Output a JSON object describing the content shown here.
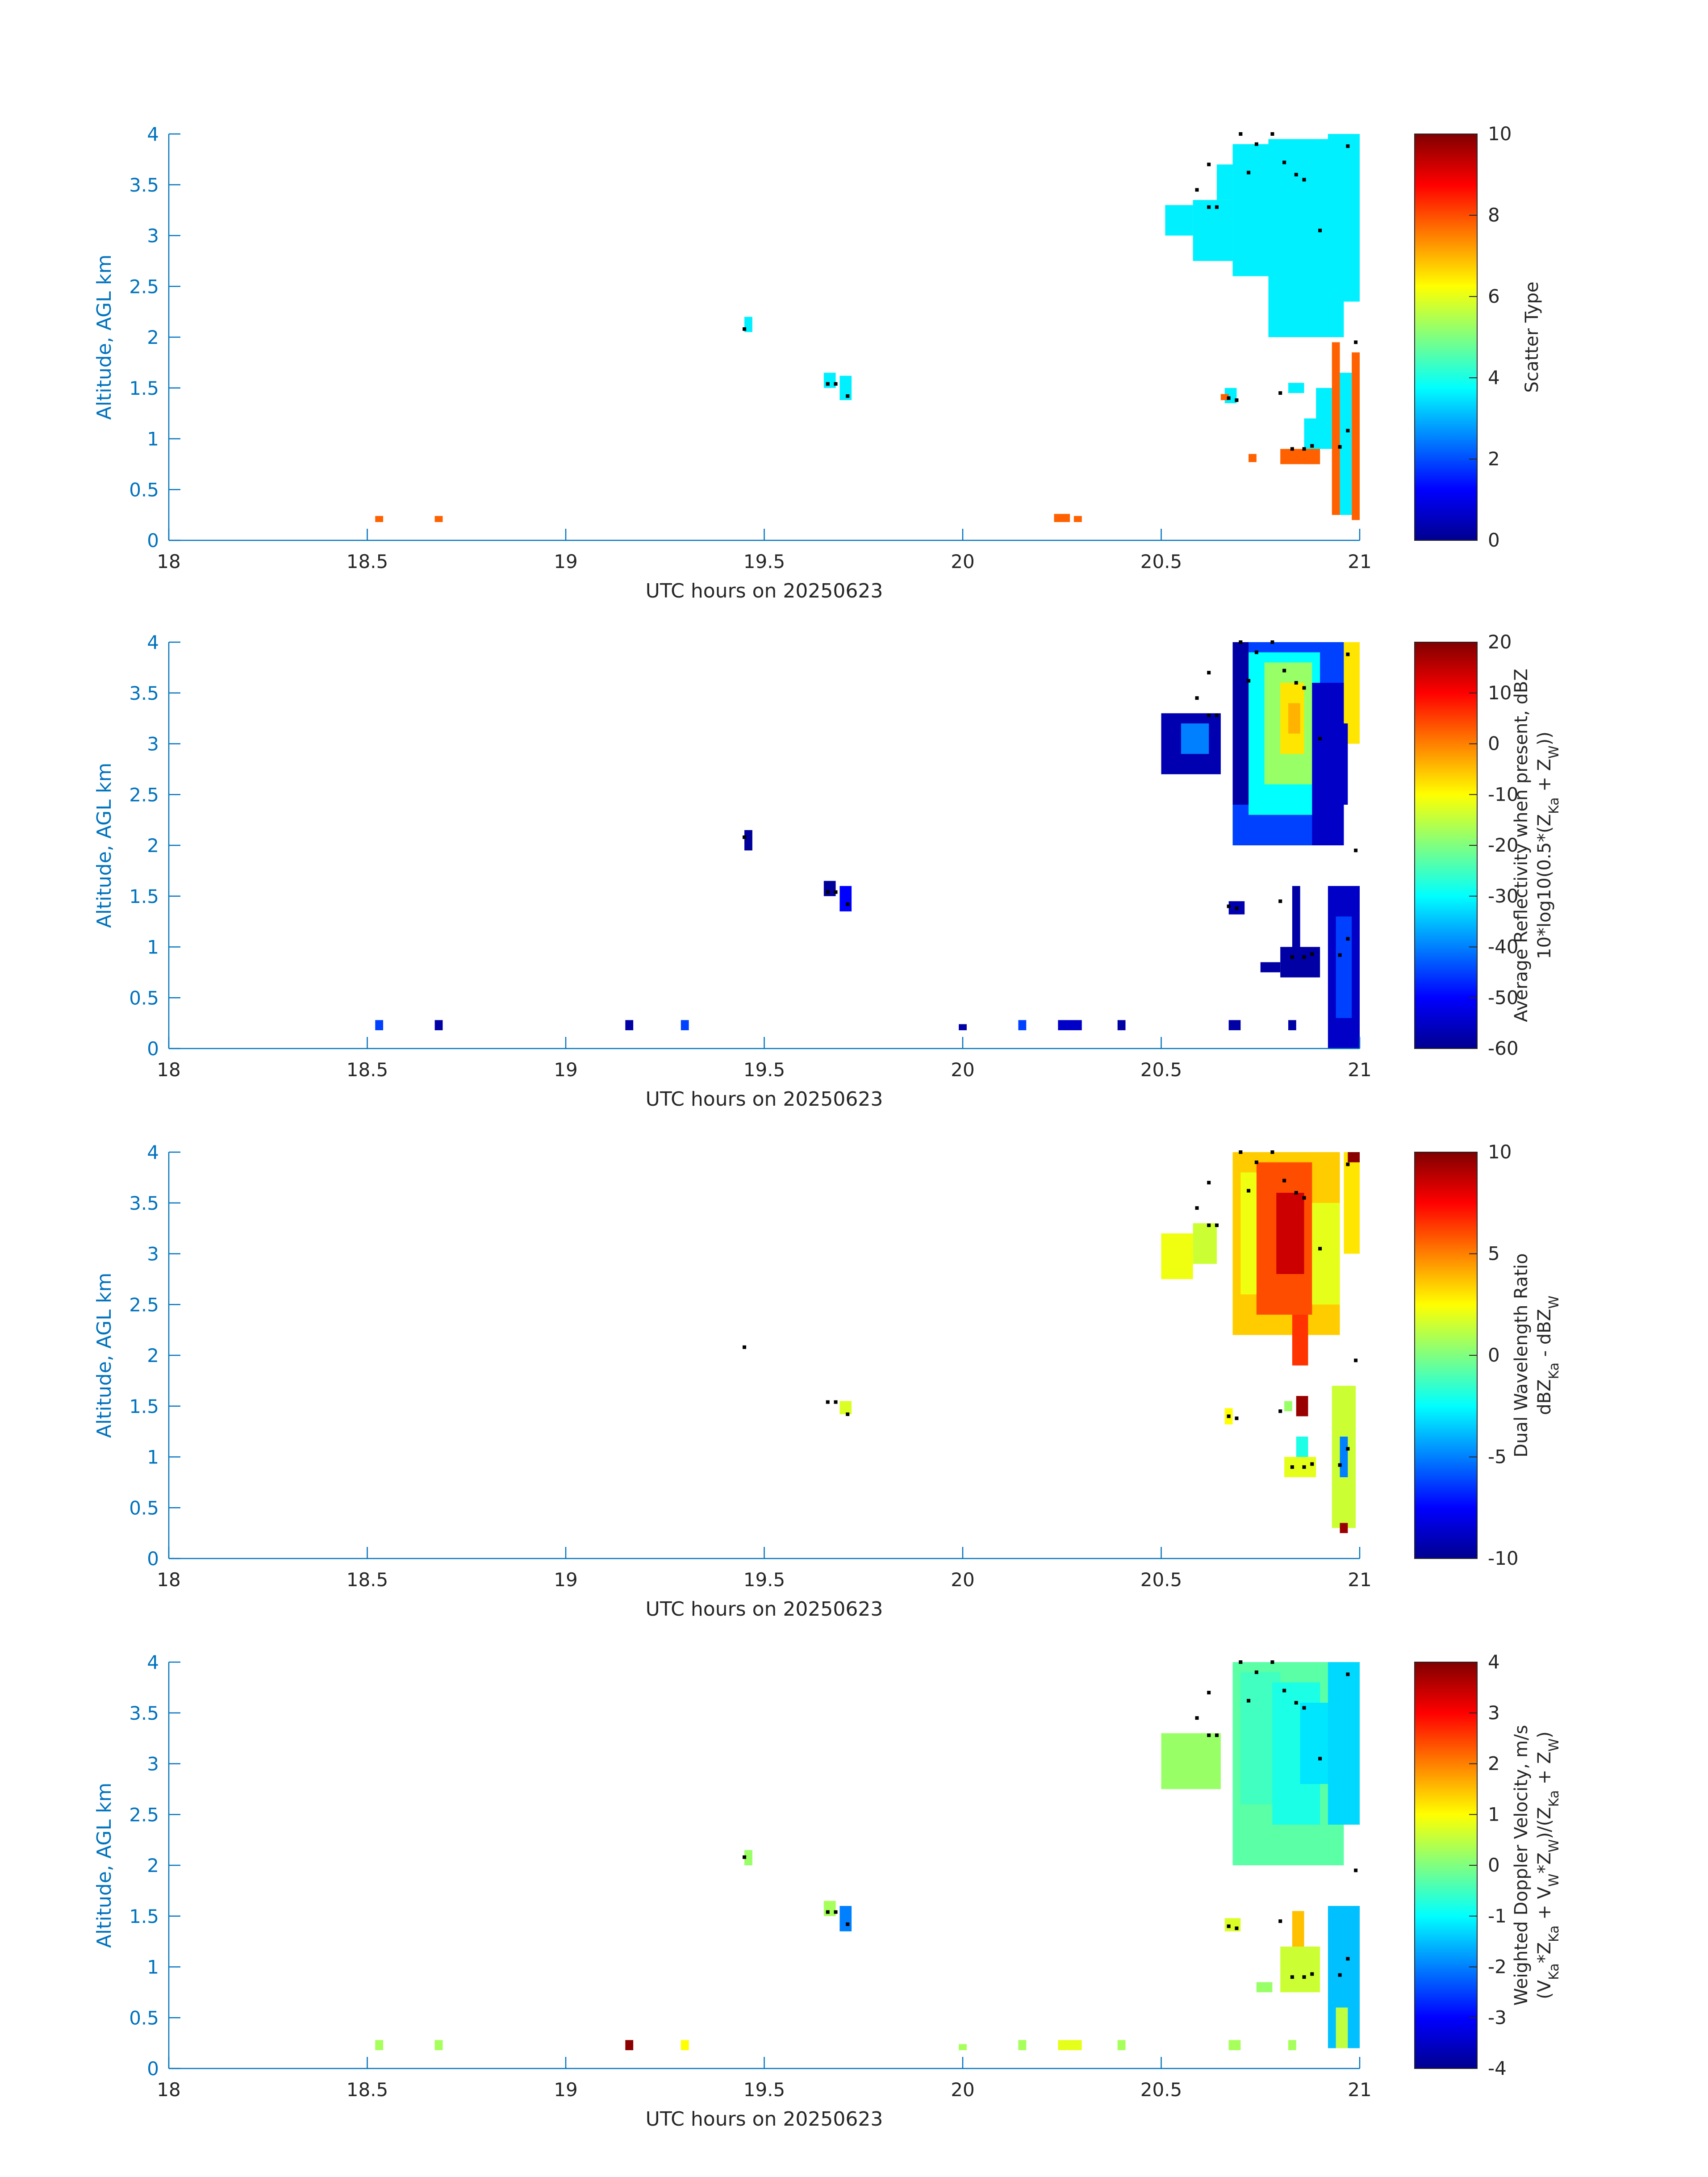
{
  "colors": {
    "axis_blue": "#0072BD",
    "axis_dark": "#262626",
    "dot": "#000000",
    "jet": [
      "#00008F",
      "#0000FF",
      "#0080FF",
      "#00FFFF",
      "#80FF80",
      "#FFFF00",
      "#FF8000",
      "#FF0000",
      "#800000"
    ]
  },
  "chart_data": [
    {
      "type": "heatmap",
      "panel": 1,
      "xlabel": "UTC hours on 20250623",
      "ylabel": "Altitude, AGL km",
      "xticks": [
        "18",
        "18.5",
        "19",
        "19.5",
        "20",
        "20.5",
        "21"
      ],
      "yticks": [
        "0",
        "0.5",
        "1",
        "1.5",
        "2",
        "2.5",
        "3",
        "3.5",
        "4"
      ],
      "xlim": [
        18,
        21
      ],
      "ylim": [
        0,
        4
      ],
      "colorbar": {
        "label_lines": [
          "Scatter Type"
        ],
        "range": [
          0,
          10
        ],
        "ticks": [
          "0",
          "2",
          "4",
          "6",
          "8",
          "10"
        ]
      },
      "cells": [
        {
          "x0": 20.77,
          "x1": 20.96,
          "y0": 2.0,
          "y1": 3.95,
          "v": 3.6
        },
        {
          "x0": 20.68,
          "x1": 20.78,
          "y0": 2.6,
          "y1": 3.9,
          "v": 3.6
        },
        {
          "x0": 20.58,
          "x1": 20.68,
          "y0": 2.75,
          "y1": 3.35,
          "v": 3.6
        },
        {
          "x0": 20.51,
          "x1": 20.58,
          "y0": 3.0,
          "y1": 3.3,
          "v": 3.6
        },
        {
          "x0": 20.64,
          "x1": 20.68,
          "y0": 3.35,
          "y1": 3.7,
          "v": 3.6
        },
        {
          "x0": 20.92,
          "x1": 21.0,
          "y0": 2.35,
          "y1": 4.0,
          "v": 3.6
        },
        {
          "x0": 20.89,
          "x1": 20.93,
          "y0": 0.9,
          "y1": 1.5,
          "v": 3.6
        },
        {
          "x0": 20.95,
          "x1": 20.98,
          "y0": 0.25,
          "y1": 1.65,
          "v": 3.6
        },
        {
          "x0": 20.82,
          "x1": 20.86,
          "y0": 1.45,
          "y1": 1.55,
          "v": 3.6
        },
        {
          "x0": 20.86,
          "x1": 20.9,
          "y0": 0.75,
          "y1": 1.2,
          "v": 3.6
        },
        {
          "x0": 20.66,
          "x1": 20.69,
          "y0": 1.35,
          "y1": 1.5,
          "v": 3.6
        },
        {
          "x0": 19.45,
          "x1": 19.47,
          "y0": 2.05,
          "y1": 2.2,
          "v": 3.6
        },
        {
          "x0": 19.65,
          "x1": 19.68,
          "y0": 1.5,
          "y1": 1.65,
          "v": 3.6
        },
        {
          "x0": 19.69,
          "x1": 19.72,
          "y0": 1.38,
          "y1": 1.62,
          "v": 3.6
        },
        {
          "x0": 20.93,
          "x1": 20.95,
          "y0": 0.25,
          "y1": 1.95,
          "v": 7.8
        },
        {
          "x0": 20.98,
          "x1": 21.0,
          "y0": 0.2,
          "y1": 1.85,
          "v": 7.8
        },
        {
          "x0": 20.8,
          "x1": 20.9,
          "y0": 0.75,
          "y1": 0.9,
          "v": 7.8
        },
        {
          "x0": 20.65,
          "x1": 20.67,
          "y0": 1.38,
          "y1": 1.44,
          "v": 7.8
        },
        {
          "x0": 20.72,
          "x1": 20.74,
          "y0": 0.77,
          "y1": 0.85,
          "v": 7.8
        },
        {
          "x0": 18.52,
          "x1": 18.54,
          "y0": 0.18,
          "y1": 0.24,
          "v": 7.8
        },
        {
          "x0": 18.67,
          "x1": 18.69,
          "y0": 0.18,
          "y1": 0.24,
          "v": 7.8
        },
        {
          "x0": 20.23,
          "x1": 20.27,
          "y0": 0.18,
          "y1": 0.26,
          "v": 7.8
        },
        {
          "x0": 20.28,
          "x1": 20.3,
          "y0": 0.18,
          "y1": 0.24,
          "v": 7.8
        }
      ]
    },
    {
      "type": "heatmap",
      "panel": 2,
      "xlabel": "UTC hours on 20250623",
      "ylabel": "Altitude, AGL km",
      "xticks": [
        "18",
        "18.5",
        "19",
        "19.5",
        "20",
        "20.5",
        "21"
      ],
      "yticks": [
        "0",
        "0.5",
        "1",
        "1.5",
        "2",
        "2.5",
        "3",
        "3.5",
        "4"
      ],
      "xlim": [
        18,
        21
      ],
      "ylim": [
        0,
        4
      ],
      "colorbar": {
        "label_lines": [
          "Average Reflectivity when present, dBZ",
          "10*log10(0.5*(Z",
          "Ka",
          " + Z",
          "W",
          "))"
        ],
        "range": [
          -60,
          20
        ],
        "ticks": [
          "-60",
          "-50",
          "-40",
          "-30",
          "-20",
          "-10",
          "0",
          "10",
          "20"
        ]
      },
      "cells": [
        {
          "x0": 20.68,
          "x1": 20.96,
          "y0": 2.0,
          "y1": 4.0,
          "v": -45
        },
        {
          "x0": 20.72,
          "x1": 20.9,
          "y0": 2.3,
          "y1": 3.9,
          "v": -30
        },
        {
          "x0": 20.76,
          "x1": 20.88,
          "y0": 2.6,
          "y1": 3.8,
          "v": -18
        },
        {
          "x0": 20.8,
          "x1": 20.86,
          "y0": 2.9,
          "y1": 3.6,
          "v": -8
        },
        {
          "x0": 20.82,
          "x1": 20.85,
          "y0": 3.1,
          "y1": 3.4,
          "v": -4
        },
        {
          "x0": 20.68,
          "x1": 20.72,
          "y0": 2.4,
          "y1": 4.0,
          "v": -58
        },
        {
          "x0": 20.88,
          "x1": 20.96,
          "y0": 2.0,
          "y1": 3.6,
          "v": -55
        },
        {
          "x0": 20.5,
          "x1": 20.65,
          "y0": 2.7,
          "y1": 3.3,
          "v": -57
        },
        {
          "x0": 20.55,
          "x1": 20.62,
          "y0": 2.9,
          "y1": 3.2,
          "v": -40
        },
        {
          "x0": 20.96,
          "x1": 21.0,
          "y0": 3.0,
          "y1": 4.0,
          "v": -8
        },
        {
          "x0": 20.95,
          "x1": 20.97,
          "y0": 2.4,
          "y1": 3.2,
          "v": -55
        },
        {
          "x0": 20.92,
          "x1": 21.0,
          "y0": 0.0,
          "y1": 1.6,
          "v": -55
        },
        {
          "x0": 20.94,
          "x1": 20.98,
          "y0": 0.3,
          "y1": 1.3,
          "v": -45
        },
        {
          "x0": 20.8,
          "x1": 20.9,
          "y0": 0.7,
          "y1": 1.0,
          "v": -58
        },
        {
          "x0": 20.83,
          "x1": 20.85,
          "y0": 1.0,
          "y1": 1.6,
          "v": -58
        },
        {
          "x0": 20.67,
          "x1": 20.71,
          "y0": 1.32,
          "y1": 1.45,
          "v": -57
        },
        {
          "x0": 20.75,
          "x1": 20.8,
          "y0": 0.75,
          "y1": 0.85,
          "v": -58
        },
        {
          "x0": 19.45,
          "x1": 19.47,
          "y0": 1.95,
          "y1": 2.15,
          "v": -59
        },
        {
          "x0": 19.65,
          "x1": 19.68,
          "y0": 1.5,
          "y1": 1.65,
          "v": -59
        },
        {
          "x0": 19.69,
          "x1": 19.72,
          "y0": 1.35,
          "y1": 1.6,
          "v": -50
        },
        {
          "x0": 18.52,
          "x1": 18.54,
          "y0": 0.18,
          "y1": 0.28,
          "v": -45
        },
        {
          "x0": 18.67,
          "x1": 18.69,
          "y0": 0.18,
          "y1": 0.28,
          "v": -58
        },
        {
          "x0": 19.15,
          "x1": 19.17,
          "y0": 0.18,
          "y1": 0.28,
          "v": -58
        },
        {
          "x0": 19.29,
          "x1": 19.31,
          "y0": 0.18,
          "y1": 0.28,
          "v": -45
        },
        {
          "x0": 19.99,
          "x1": 20.01,
          "y0": 0.18,
          "y1": 0.24,
          "v": -58
        },
        {
          "x0": 20.14,
          "x1": 20.16,
          "y0": 0.18,
          "y1": 0.28,
          "v": -45
        },
        {
          "x0": 20.24,
          "x1": 20.3,
          "y0": 0.18,
          "y1": 0.28,
          "v": -55
        },
        {
          "x0": 20.39,
          "x1": 20.41,
          "y0": 0.18,
          "y1": 0.28,
          "v": -58
        },
        {
          "x0": 20.67,
          "x1": 20.7,
          "y0": 0.18,
          "y1": 0.28,
          "v": -58
        },
        {
          "x0": 20.82,
          "x1": 20.84,
          "y0": 0.18,
          "y1": 0.28,
          "v": -58
        }
      ]
    },
    {
      "type": "heatmap",
      "panel": 3,
      "xlabel": "UTC hours on 20250623",
      "ylabel": "Altitude, AGL km",
      "xticks": [
        "18",
        "18.5",
        "19",
        "19.5",
        "20",
        "20.5",
        "21"
      ],
      "yticks": [
        "0",
        "0.5",
        "1",
        "1.5",
        "2",
        "2.5",
        "3",
        "3.5",
        "4"
      ],
      "xlim": [
        18,
        21
      ],
      "ylim": [
        0,
        4
      ],
      "colorbar": {
        "label_lines": [
          "Dual Wavelength Ratio",
          "dBZ",
          "Ka",
          " - dBZ",
          "W"
        ],
        "range": [
          -10,
          10
        ],
        "ticks": [
          "-10",
          "-5",
          "0",
          "5",
          "10"
        ]
      },
      "cells": [
        {
          "x0": 20.68,
          "x1": 20.95,
          "y0": 2.2,
          "y1": 4.0,
          "v": 3.5
        },
        {
          "x0": 20.74,
          "x1": 20.88,
          "y0": 2.4,
          "y1": 3.9,
          "v": 6
        },
        {
          "x0": 20.79,
          "x1": 20.86,
          "y0": 2.8,
          "y1": 3.6,
          "v": 8.5
        },
        {
          "x0": 20.7,
          "x1": 20.74,
          "y0": 2.6,
          "y1": 3.8,
          "v": 2.2
        },
        {
          "x0": 20.88,
          "x1": 20.95,
          "y0": 2.5,
          "y1": 3.5,
          "v": 2
        },
        {
          "x0": 20.83,
          "x1": 20.87,
          "y0": 1.9,
          "y1": 2.4,
          "v": 6.5
        },
        {
          "x0": 20.5,
          "x1": 20.58,
          "y0": 2.75,
          "y1": 3.2,
          "v": 2.2
        },
        {
          "x0": 20.58,
          "x1": 20.64,
          "y0": 2.9,
          "y1": 3.3,
          "v": 1.5
        },
        {
          "x0": 20.96,
          "x1": 21.0,
          "y0": 3.0,
          "y1": 4.0,
          "v": 3
        },
        {
          "x0": 20.97,
          "x1": 21.0,
          "y0": 3.9,
          "y1": 4.0,
          "v": 9.8
        },
        {
          "x0": 20.93,
          "x1": 20.99,
          "y0": 0.3,
          "y1": 1.7,
          "v": 1.5
        },
        {
          "x0": 20.95,
          "x1": 20.97,
          "y0": 0.8,
          "y1": 1.2,
          "v": -5
        },
        {
          "x0": 20.95,
          "x1": 20.97,
          "y0": 0.25,
          "y1": 0.35,
          "v": 9.5
        },
        {
          "x0": 20.81,
          "x1": 20.89,
          "y0": 0.8,
          "y1": 1.0,
          "v": 2
        },
        {
          "x0": 20.84,
          "x1": 20.87,
          "y0": 1.0,
          "y1": 1.2,
          "v": -2
        },
        {
          "x0": 20.84,
          "x1": 20.87,
          "y0": 1.4,
          "y1": 1.6,
          "v": 9.5
        },
        {
          "x0": 20.81,
          "x1": 20.83,
          "y0": 1.45,
          "y1": 1.55,
          "v": 0.5
        },
        {
          "x0": 20.66,
          "x1": 20.68,
          "y0": 1.32,
          "y1": 1.48,
          "v": 2.5
        },
        {
          "x0": 19.69,
          "x1": 19.72,
          "y0": 1.42,
          "y1": 1.55,
          "v": 1.8
        }
      ]
    },
    {
      "type": "heatmap",
      "panel": 4,
      "xlabel": "UTC hours on 20250623",
      "ylabel": "Altitude, AGL km",
      "xticks": [
        "18",
        "18.5",
        "19",
        "19.5",
        "20",
        "20.5",
        "21"
      ],
      "yticks": [
        "0",
        "0.5",
        "1",
        "1.5",
        "2",
        "2.5",
        "3",
        "3.5",
        "4"
      ],
      "xlim": [
        18,
        21
      ],
      "ylim": [
        0,
        4
      ],
      "colorbar": {
        "label_lines": [
          "Weighted Doppler Velocity, m/s",
          "(V",
          "Ka",
          "*Z",
          "Ka",
          " + V",
          "W",
          "*Z",
          "W",
          ")/(Z",
          "Ka",
          " + Z",
          "W",
          ")"
        ],
        "range": [
          -4,
          4
        ],
        "ticks": [
          "-4",
          "-3",
          "-2",
          "-1",
          "0",
          "1",
          "2",
          "3",
          "4"
        ]
      },
      "cells": [
        {
          "x0": 20.68,
          "x1": 20.96,
          "y0": 2.0,
          "y1": 4.0,
          "v": -0.3
        },
        {
          "x0": 20.7,
          "x1": 20.8,
          "y0": 2.6,
          "y1": 3.9,
          "v": -0.5
        },
        {
          "x0": 20.78,
          "x1": 20.9,
          "y0": 2.4,
          "y1": 3.8,
          "v": -0.8
        },
        {
          "x0": 20.85,
          "x1": 20.95,
          "y0": 2.8,
          "y1": 3.6,
          "v": -1.2
        },
        {
          "x0": 20.5,
          "x1": 20.65,
          "y0": 2.75,
          "y1": 3.3,
          "v": 0.2
        },
        {
          "x0": 20.92,
          "x1": 21.0,
          "y0": 2.4,
          "y1": 4.0,
          "v": -1.3
        },
        {
          "x0": 20.92,
          "x1": 21.0,
          "y0": 0.2,
          "y1": 1.6,
          "v": -1.5
        },
        {
          "x0": 20.94,
          "x1": 20.97,
          "y0": 0.2,
          "y1": 0.6,
          "v": 0.5
        },
        {
          "x0": 20.8,
          "x1": 20.9,
          "y0": 0.75,
          "y1": 1.2,
          "v": 0.6
        },
        {
          "x0": 20.83,
          "x1": 20.86,
          "y0": 1.2,
          "y1": 1.55,
          "v": 1.5
        },
        {
          "x0": 20.66,
          "x1": 20.7,
          "y0": 1.35,
          "y1": 1.48,
          "v": 0.7
        },
        {
          "x0": 20.74,
          "x1": 20.78,
          "y0": 0.75,
          "y1": 0.85,
          "v": 0.2
        },
        {
          "x0": 19.45,
          "x1": 19.47,
          "y0": 2.0,
          "y1": 2.15,
          "v": 0.2
        },
        {
          "x0": 19.65,
          "x1": 19.68,
          "y0": 1.5,
          "y1": 1.65,
          "v": 0.3
        },
        {
          "x0": 19.69,
          "x1": 19.72,
          "y0": 1.35,
          "y1": 1.6,
          "v": -2
        },
        {
          "x0": 18.52,
          "x1": 18.54,
          "y0": 0.18,
          "y1": 0.28,
          "v": 0.3
        },
        {
          "x0": 18.67,
          "x1": 18.69,
          "y0": 0.18,
          "y1": 0.28,
          "v": 0.3
        },
        {
          "x0": 19.15,
          "x1": 19.17,
          "y0": 0.18,
          "y1": 0.28,
          "v": 3.9
        },
        {
          "x0": 19.29,
          "x1": 19.31,
          "y0": 0.18,
          "y1": 0.28,
          "v": 1
        },
        {
          "x0": 19.99,
          "x1": 20.01,
          "y0": 0.18,
          "y1": 0.24,
          "v": 0.3
        },
        {
          "x0": 20.14,
          "x1": 20.16,
          "y0": 0.18,
          "y1": 0.28,
          "v": 0.3
        },
        {
          "x0": 20.24,
          "x1": 20.3,
          "y0": 0.18,
          "y1": 0.28,
          "v": 0.8
        },
        {
          "x0": 20.39,
          "x1": 20.41,
          "y0": 0.18,
          "y1": 0.28,
          "v": 0.3
        },
        {
          "x0": 20.67,
          "x1": 20.7,
          "y0": 0.18,
          "y1": 0.28,
          "v": 0.3
        },
        {
          "x0": 20.82,
          "x1": 20.84,
          "y0": 0.18,
          "y1": 0.28,
          "v": 0.3
        }
      ]
    }
  ],
  "cloud_base_points": [
    {
      "x": 20.7,
      "y": 4.0
    },
    {
      "x": 20.74,
      "y": 3.9
    },
    {
      "x": 20.72,
      "y": 3.62
    },
    {
      "x": 20.78,
      "y": 4.0
    },
    {
      "x": 20.81,
      "y": 3.72
    },
    {
      "x": 20.84,
      "y": 3.6
    },
    {
      "x": 20.86,
      "y": 3.55
    },
    {
      "x": 20.9,
      "y": 3.05
    },
    {
      "x": 20.62,
      "y": 3.7
    },
    {
      "x": 20.59,
      "y": 3.45
    },
    {
      "x": 20.62,
      "y": 3.28
    },
    {
      "x": 20.64,
      "y": 3.28
    },
    {
      "x": 20.97,
      "y": 3.88
    },
    {
      "x": 20.99,
      "y": 1.95
    },
    {
      "x": 20.97,
      "y": 1.08
    },
    {
      "x": 20.95,
      "y": 0.92
    },
    {
      "x": 20.83,
      "y": 0.9
    },
    {
      "x": 20.86,
      "y": 0.9
    },
    {
      "x": 20.88,
      "y": 0.93
    },
    {
      "x": 20.8,
      "y": 1.45
    },
    {
      "x": 20.67,
      "y": 1.4
    },
    {
      "x": 20.69,
      "y": 1.38
    },
    {
      "x": 19.45,
      "y": 2.08
    },
    {
      "x": 19.66,
      "y": 1.54
    },
    {
      "x": 19.68,
      "y": 1.54
    },
    {
      "x": 19.71,
      "y": 1.42
    }
  ]
}
